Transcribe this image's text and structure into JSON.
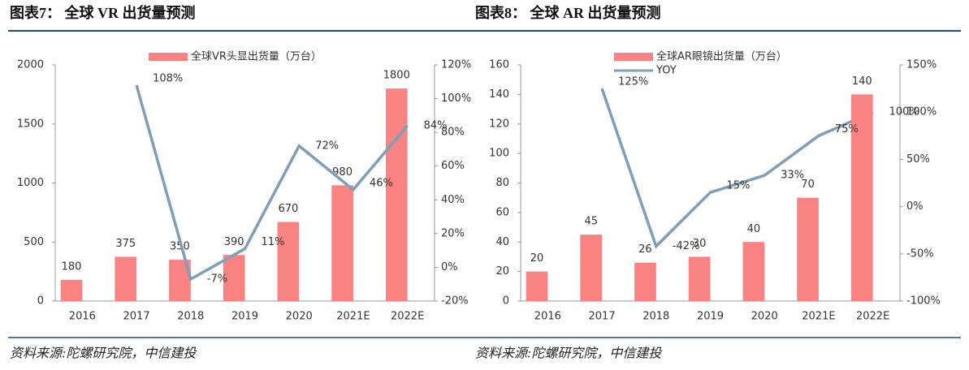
{
  "chart_data": [
    {
      "type": "bar-line",
      "title": "图表7： 全球 VR 出货量预测",
      "source": "资料来源:陀螺研究院，中信建投",
      "categories": [
        "2016",
        "2017",
        "2018",
        "2019",
        "2020",
        "2021E",
        "2022E"
      ],
      "series": [
        {
          "name": "全球VR头显出货量（万台）",
          "type": "bar",
          "color": "#f98282",
          "values": [
            180,
            375,
            350,
            390,
            670,
            980,
            1800
          ]
        },
        {
          "type": "line",
          "axis": "y2",
          "color": "#7f9fb8",
          "values": [
            null,
            108,
            -7,
            11,
            72,
            46,
            84
          ],
          "value_labels": [
            null,
            "108%",
            "-7%",
            "11%",
            "72%",
            "46%",
            "84%"
          ]
        }
      ],
      "ylim": [
        0,
        2000
      ],
      "yticks": [
        0,
        500,
        1000,
        1500,
        2000
      ],
      "y2lim": [
        -20,
        120
      ],
      "y2ticks": [
        {
          "value": -20,
          "label": "-20%"
        },
        {
          "value": 0,
          "label": "0%"
        },
        {
          "value": 20,
          "label": "20%"
        },
        {
          "value": 40,
          "label": "40%"
        },
        {
          "value": 60,
          "label": "60%"
        },
        {
          "value": 80,
          "label": "80%"
        },
        {
          "value": 100,
          "label": "100%"
        },
        {
          "value": 120,
          "label": "120%"
        }
      ]
    },
    {
      "type": "bar-line",
      "title": "图表8： 全球 AR 出货量预测",
      "source": "资料来源:陀螺研究院，中信建投",
      "categories": [
        "2016",
        "2017",
        "2018",
        "2019",
        "2020",
        "2021E",
        "2022E"
      ],
      "series": [
        {
          "name": "全球AR眼镜出货量（万台）",
          "type": "bar",
          "color": "#f98282",
          "values": [
            20,
            45,
            26,
            30,
            40,
            70,
            140
          ]
        },
        {
          "name": "YOY",
          "type": "line",
          "axis": "y2",
          "color": "#7f9fb8",
          "values": [
            null,
            125,
            -42,
            15,
            33,
            75,
            100
          ],
          "value_labels": [
            null,
            "125%",
            "-42%",
            "15%",
            "33%",
            "75%",
            "100%"
          ]
        }
      ],
      "ylim": [
        0,
        160
      ],
      "yticks": [
        0,
        20,
        40,
        60,
        80,
        100,
        120,
        140,
        160
      ],
      "y2lim": [
        -100,
        150
      ],
      "y2ticks": [
        {
          "value": -100,
          "label": "-100%"
        },
        {
          "value": -50,
          "label": "-50%"
        },
        {
          "value": 0,
          "label": "0%"
        },
        {
          "value": 50,
          "label": "50%"
        },
        {
          "value": 100,
          "label": "100%"
        },
        {
          "value": 150,
          "label": "150%"
        }
      ]
    }
  ]
}
